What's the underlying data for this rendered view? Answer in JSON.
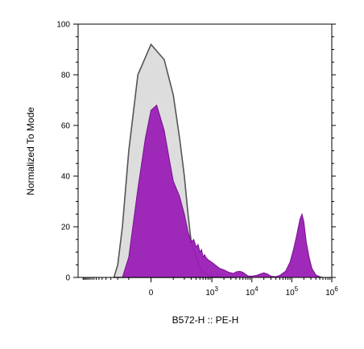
{
  "chart_data": {
    "type": "area",
    "title": "",
    "xlabel": "B572-H :: PE-H",
    "ylabel": "Normalized To Mode",
    "x_scale": "biexponential",
    "xlim": [
      -2000,
      1000000
    ],
    "ylim": [
      0,
      100
    ],
    "y_ticks": [
      {
        "value": 0,
        "label": "0"
      },
      {
        "value": 20,
        "label": "20"
      },
      {
        "value": 40,
        "label": "40"
      },
      {
        "value": 60,
        "label": "60"
      },
      {
        "value": 80,
        "label": "80"
      },
      {
        "value": 100,
        "label": "100"
      }
    ],
    "x_ticks": [
      {
        "value": 0,
        "base": "0",
        "exp": ""
      },
      {
        "value": 1000,
        "base": "10",
        "exp": "3"
      },
      {
        "value": 10000,
        "base": "10",
        "exp": "4"
      },
      {
        "value": 100000,
        "base": "10",
        "exp": "5"
      },
      {
        "value": 1000000,
        "base": "10",
        "exp": "6"
      }
    ],
    "grid": false,
    "series": [
      {
        "color": "#d9d9d9",
        "edge_color": "#555555",
        "x": [
          -250,
          -200,
          -150,
          -100,
          -50,
          0,
          50,
          100,
          150,
          200,
          250,
          300,
          400,
          500,
          600,
          800,
          1000,
          2000,
          4000
        ],
        "y": [
          0,
          5,
          20,
          50,
          80,
          92,
          86,
          72,
          55,
          40,
          25,
          14,
          8,
          4,
          2,
          1,
          0.5,
          0.2,
          0
        ]
      },
      {
        "color": "#9a1fb5",
        "edge_color": "#7a1090",
        "x": [
          -150,
          -100,
          -50,
          -20,
          0,
          20,
          50,
          80,
          100,
          150,
          200,
          250,
          300,
          350,
          400,
          450,
          500,
          550,
          600,
          650,
          700,
          800,
          1000,
          1300,
          1600,
          2000,
          2500,
          3000,
          3500,
          4000,
          5000,
          6000,
          7000,
          8000,
          10000,
          13000,
          16000,
          20000,
          25000,
          30000,
          40000,
          50000,
          70000,
          90000,
          110000,
          130000,
          160000,
          180000,
          200000,
          230000,
          270000,
          320000,
          400000,
          500000,
          600000
        ],
        "y": [
          0,
          8,
          35,
          55,
          66,
          68,
          58,
          45,
          38,
          32,
          25,
          18,
          14,
          15,
          12,
          13,
          10,
          11,
          8,
          9,
          8,
          7,
          6,
          4.5,
          3.5,
          3,
          2.2,
          1.8,
          1.6,
          2.2,
          2.4,
          2,
          1.2,
          0.6,
          0.5,
          0.8,
          1.3,
          1.8,
          1.3,
          0.5,
          0.3,
          0.8,
          2.5,
          6,
          11,
          16,
          23,
          25,
          22,
          14,
          8,
          3.5,
          1,
          0.3,
          0
        ]
      }
    ]
  }
}
